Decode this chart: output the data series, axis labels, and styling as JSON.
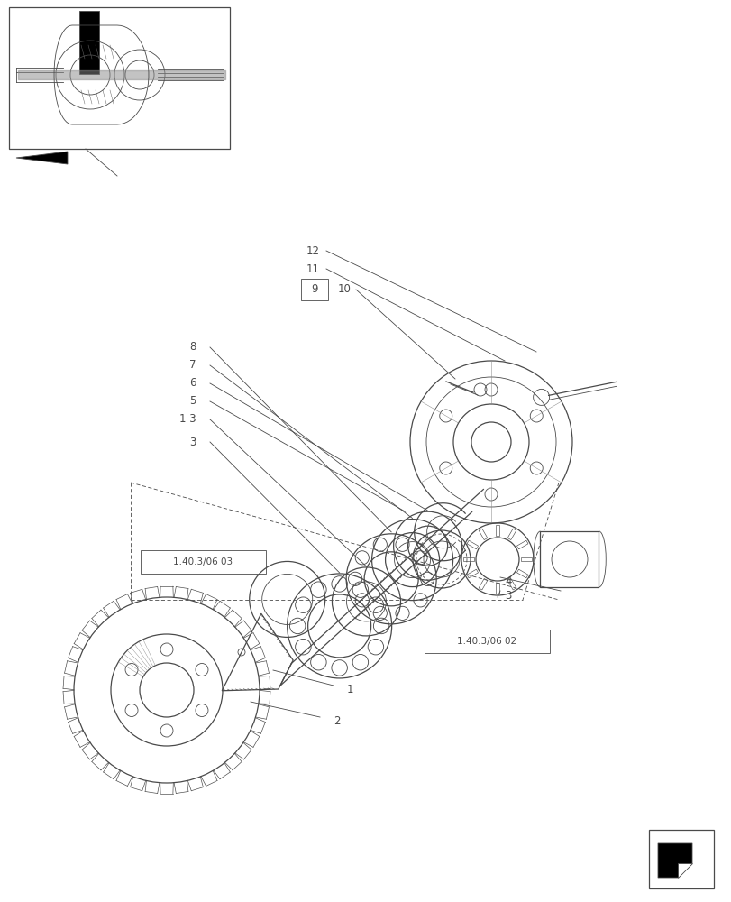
{
  "bg_color": "#ffffff",
  "line_color": "#4a4a4a",
  "fig_width": 8.12,
  "fig_height": 10.0,
  "dpi": 100,
  "scale": [
    812,
    1000
  ]
}
